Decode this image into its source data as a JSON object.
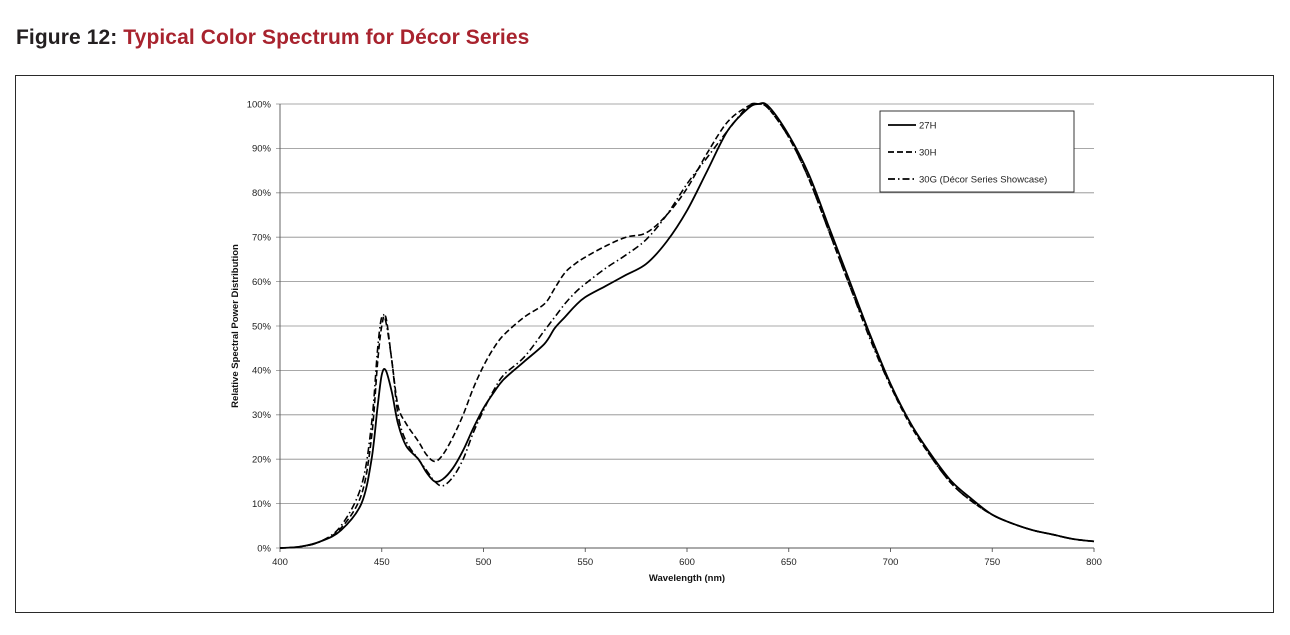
{
  "figure": {
    "number_label": "Figure 12:",
    "title": "Typical Color Spectrum for Décor Series"
  },
  "colors": {
    "title_accent": "#a8232e",
    "series": "#000000",
    "grid": "#8c8c8c"
  },
  "chart_data": {
    "type": "line",
    "xlabel": "Wavelength (nm)",
    "ylabel": "Relative Spectral Power Distribution",
    "xlim": [
      400,
      800
    ],
    "ylim": [
      0,
      100
    ],
    "x_ticks": [
      400,
      450,
      500,
      550,
      600,
      650,
      700,
      750,
      800
    ],
    "x_tick_labels": [
      "400",
      "450",
      "500",
      "550",
      "600",
      "650",
      "700",
      "750",
      "800"
    ],
    "y_ticks": [
      0,
      10,
      20,
      30,
      40,
      50,
      60,
      70,
      80,
      90,
      100
    ],
    "y_tick_labels": [
      "0%",
      "10%",
      "20%",
      "30%",
      "40%",
      "50%",
      "60%",
      "70%",
      "80%",
      "90%",
      "100%"
    ],
    "grid": "horizontal",
    "legend_position": "top-right",
    "series": [
      {
        "name": "27H",
        "style": "solid",
        "points": [
          [
            400,
            0
          ],
          [
            410,
            0.3
          ],
          [
            420,
            1.5
          ],
          [
            430,
            4
          ],
          [
            440,
            10
          ],
          [
            445,
            20
          ],
          [
            448,
            32
          ],
          [
            450,
            39
          ],
          [
            452,
            40
          ],
          [
            455,
            35
          ],
          [
            458,
            28
          ],
          [
            462,
            23
          ],
          [
            468,
            20
          ],
          [
            472,
            17
          ],
          [
            476,
            15
          ],
          [
            480,
            15.5
          ],
          [
            485,
            18
          ],
          [
            490,
            22
          ],
          [
            495,
            27
          ],
          [
            500,
            31.5
          ],
          [
            505,
            35
          ],
          [
            510,
            38
          ],
          [
            520,
            42
          ],
          [
            530,
            46
          ],
          [
            535,
            49.5
          ],
          [
            540,
            52
          ],
          [
            545,
            54.5
          ],
          [
            550,
            56.5
          ],
          [
            560,
            59
          ],
          [
            570,
            61.5
          ],
          [
            580,
            64
          ],
          [
            590,
            69
          ],
          [
            600,
            76
          ],
          [
            610,
            85
          ],
          [
            620,
            94
          ],
          [
            630,
            99
          ],
          [
            635,
            100
          ],
          [
            640,
            99.5
          ],
          [
            650,
            93
          ],
          [
            660,
            84
          ],
          [
            670,
            72
          ],
          [
            680,
            60
          ],
          [
            690,
            48
          ],
          [
            700,
            37
          ],
          [
            710,
            28
          ],
          [
            720,
            21
          ],
          [
            730,
            15
          ],
          [
            740,
            11
          ],
          [
            750,
            7.5
          ],
          [
            760,
            5.5
          ],
          [
            770,
            4
          ],
          [
            780,
            3
          ],
          [
            790,
            2
          ],
          [
            800,
            1.5
          ]
        ]
      },
      {
        "name": "30H",
        "style": "dashed",
        "points": [
          [
            400,
            0
          ],
          [
            410,
            0.3
          ],
          [
            420,
            1.5
          ],
          [
            430,
            4.5
          ],
          [
            440,
            12
          ],
          [
            445,
            25
          ],
          [
            448,
            42
          ],
          [
            450,
            50
          ],
          [
            452,
            52
          ],
          [
            455,
            42
          ],
          [
            458,
            32
          ],
          [
            462,
            28
          ],
          [
            468,
            24
          ],
          [
            472,
            21
          ],
          [
            476,
            19.5
          ],
          [
            480,
            21
          ],
          [
            485,
            25
          ],
          [
            490,
            30
          ],
          [
            495,
            36
          ],
          [
            500,
            41
          ],
          [
            505,
            45
          ],
          [
            510,
            48
          ],
          [
            520,
            52
          ],
          [
            530,
            55
          ],
          [
            535,
            58.5
          ],
          [
            540,
            62
          ],
          [
            545,
            64
          ],
          [
            550,
            65.5
          ],
          [
            560,
            68
          ],
          [
            570,
            70
          ],
          [
            580,
            71
          ],
          [
            590,
            75
          ],
          [
            600,
            81
          ],
          [
            610,
            89
          ],
          [
            620,
            96
          ],
          [
            630,
            99.5
          ],
          [
            635,
            100
          ],
          [
            640,
            99
          ],
          [
            650,
            92.5
          ],
          [
            660,
            83
          ],
          [
            670,
            71
          ],
          [
            680,
            59
          ],
          [
            690,
            47.5
          ],
          [
            700,
            36.5
          ],
          [
            710,
            27.5
          ],
          [
            720,
            20.5
          ],
          [
            730,
            14.5
          ],
          [
            740,
            10.5
          ],
          [
            750,
            7.5
          ],
          [
            760,
            5.5
          ],
          [
            770,
            4
          ],
          [
            780,
            3
          ],
          [
            790,
            2
          ],
          [
            800,
            1.5
          ]
        ]
      },
      {
        "name": "30G (Décor Series Showcase)",
        "style": "dashdot",
        "points": [
          [
            400,
            0
          ],
          [
            410,
            0.3
          ],
          [
            420,
            1.5
          ],
          [
            430,
            5
          ],
          [
            440,
            14
          ],
          [
            445,
            28
          ],
          [
            448,
            45
          ],
          [
            450,
            52
          ],
          [
            452,
            51
          ],
          [
            455,
            42
          ],
          [
            458,
            30
          ],
          [
            462,
            24
          ],
          [
            468,
            20
          ],
          [
            472,
            17.5
          ],
          [
            476,
            15
          ],
          [
            480,
            14
          ],
          [
            485,
            16
          ],
          [
            490,
            20
          ],
          [
            495,
            26
          ],
          [
            500,
            31
          ],
          [
            505,
            35.5
          ],
          [
            510,
            39
          ],
          [
            520,
            43
          ],
          [
            530,
            49
          ],
          [
            535,
            52
          ],
          [
            540,
            55
          ],
          [
            545,
            57.5
          ],
          [
            550,
            59.5
          ],
          [
            560,
            63
          ],
          [
            570,
            66
          ],
          [
            580,
            69.5
          ],
          [
            590,
            75
          ],
          [
            600,
            82
          ],
          [
            610,
            88
          ],
          [
            620,
            94
          ],
          [
            630,
            99.5
          ],
          [
            635,
            100
          ],
          [
            640,
            99
          ],
          [
            650,
            92.5
          ],
          [
            660,
            83
          ],
          [
            670,
            71
          ],
          [
            680,
            59
          ],
          [
            690,
            47
          ],
          [
            700,
            36.5
          ],
          [
            710,
            28
          ],
          [
            720,
            20.5
          ],
          [
            730,
            14.5
          ],
          [
            740,
            10.5
          ],
          [
            750,
            7.5
          ],
          [
            760,
            5.5
          ],
          [
            770,
            4
          ],
          [
            780,
            3
          ],
          [
            790,
            2
          ],
          [
            800,
            1.5
          ]
        ]
      }
    ]
  }
}
